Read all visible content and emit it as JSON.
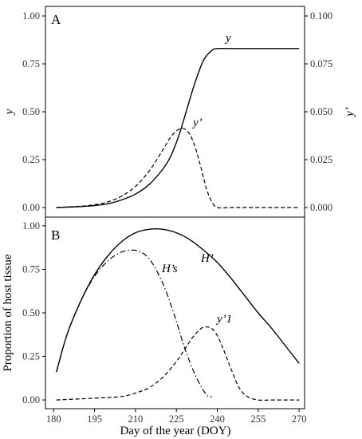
{
  "chart_data": [
    {
      "panel_label": "A",
      "type": "line",
      "ylabel_left": "y",
      "ylabel_right": "y’",
      "xlim": [
        177,
        272
      ],
      "ylim_left": [
        -0.05,
        1.05
      ],
      "ylim_right": [
        -0.005,
        0.105
      ],
      "yticks_left": [
        "0.00",
        "0.25",
        "0.50",
        "0.75",
        "1.00"
      ],
      "yticks_right": [
        "0.000",
        "0.025",
        "0.050",
        "0.075",
        "0.100"
      ],
      "grid": false,
      "series": [
        {
          "name": "y",
          "axis": "left",
          "style": "solid",
          "x": [
            181,
            190,
            195,
            200,
            205,
            210,
            215,
            220,
            223,
            226,
            229,
            232,
            235,
            238,
            240,
            245,
            250,
            255,
            260,
            265,
            270
          ],
          "y": [
            0.0,
            0.005,
            0.01,
            0.02,
            0.04,
            0.07,
            0.12,
            0.2,
            0.27,
            0.38,
            0.52,
            0.66,
            0.77,
            0.82,
            0.83,
            0.83,
            0.83,
            0.83,
            0.83,
            0.83,
            0.83
          ]
        },
        {
          "name": "y’",
          "axis": "right",
          "style": "dashed",
          "x": [
            181,
            190,
            195,
            200,
            205,
            210,
            215,
            220,
            223,
            226,
            228,
            230,
            232,
            234,
            236,
            238,
            240,
            245,
            250,
            255,
            260,
            265,
            270
          ],
          "y": [
            0.0,
            0.0007,
            0.0015,
            0.003,
            0.006,
            0.011,
            0.019,
            0.03,
            0.037,
            0.041,
            0.041,
            0.038,
            0.031,
            0.021,
            0.01,
            0.003,
            0.0,
            0.0,
            0.0,
            0.0,
            0.0,
            0.0,
            0.0
          ]
        }
      ]
    },
    {
      "panel_label": "B",
      "type": "line",
      "xlabel": "Day of the year (DOY)",
      "ylabel": "Proportion of host tissue",
      "xlim": [
        177,
        272
      ],
      "ylim": [
        -0.05,
        1.05
      ],
      "xticks": [
        "180",
        "195",
        "210",
        "225",
        "240",
        "255",
        "270"
      ],
      "yticks": [
        "0.00",
        "0.25",
        "0.50",
        "0.75",
        "1.00"
      ],
      "grid": false,
      "series": [
        {
          "name": "H’",
          "style": "solid",
          "x": [
            181,
            185,
            190,
            195,
            200,
            205,
            210,
            215,
            220,
            225,
            230,
            235,
            240,
            245,
            250,
            255,
            260,
            265,
            270
          ],
          "y": [
            0.16,
            0.38,
            0.57,
            0.72,
            0.83,
            0.91,
            0.96,
            0.98,
            0.98,
            0.96,
            0.92,
            0.86,
            0.79,
            0.7,
            0.6,
            0.5,
            0.41,
            0.31,
            0.21
          ]
        },
        {
          "name": "H’s",
          "style": "dash-dot",
          "x": [
            181,
            185,
            190,
            195,
            200,
            205,
            210,
            213,
            216,
            220,
            224,
            228,
            232,
            236,
            238
          ],
          "y": [
            0.16,
            0.38,
            0.57,
            0.71,
            0.8,
            0.85,
            0.86,
            0.84,
            0.79,
            0.67,
            0.5,
            0.3,
            0.14,
            0.03,
            0.02
          ]
        },
        {
          "name": "y’1",
          "style": "dashed",
          "x": [
            181,
            195,
            205,
            210,
            215,
            220,
            225,
            228,
            231,
            234,
            236,
            238,
            240,
            242,
            245,
            248,
            251,
            255,
            260,
            265,
            270
          ],
          "y": [
            0.0,
            0.01,
            0.02,
            0.04,
            0.07,
            0.13,
            0.22,
            0.29,
            0.36,
            0.41,
            0.42,
            0.41,
            0.37,
            0.3,
            0.18,
            0.07,
            0.02,
            0.0,
            0.0,
            0.0,
            0.0
          ]
        }
      ]
    }
  ],
  "labels": {
    "panel_a": "A",
    "panel_b": "B",
    "a_ylabel_left": "y",
    "a_ylabel_right": "y’",
    "a_curve_y": "y",
    "a_curve_yprime": "y’",
    "b_ylabel": "Proportion of host tissue",
    "b_xlabel": "Day of the year (DOY)",
    "b_curve_H": "H’",
    "b_curve_Hs": "H’s",
    "b_curve_y1": "y’1"
  }
}
